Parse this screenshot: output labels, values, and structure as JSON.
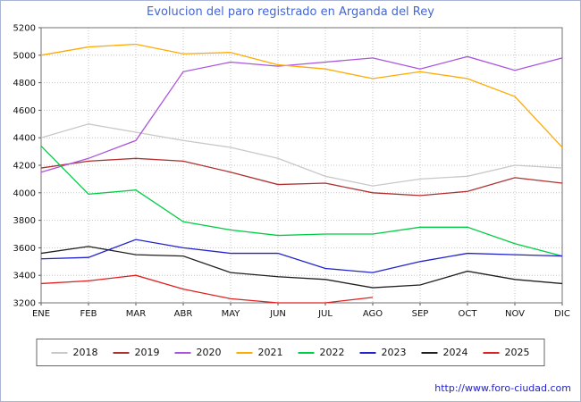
{
  "footer": {
    "url": "http://www.foro-ciudad.com"
  },
  "chart_data": {
    "type": "line",
    "title": "Evolucion del paro registrado en Arganda del Rey",
    "title_color": "#4366d6",
    "categories": [
      "ENE",
      "FEB",
      "MAR",
      "ABR",
      "MAY",
      "JUN",
      "JUL",
      "AGO",
      "SEP",
      "OCT",
      "NOV",
      "DIC"
    ],
    "ylim": [
      3200,
      5200
    ],
    "ytick_step": 200,
    "grid": true,
    "legend_position": "bottom",
    "series": [
      {
        "name": "2018",
        "color": "#c8c8c8",
        "values": [
          4400,
          4500,
          4440,
          4380,
          4330,
          4250,
          4120,
          4050,
          4100,
          4120,
          4200,
          4180
        ]
      },
      {
        "name": "2019",
        "color": "#b03030",
        "values": [
          4180,
          4230,
          4250,
          4230,
          4150,
          4060,
          4070,
          4000,
          3980,
          4010,
          4110,
          4070
        ]
      },
      {
        "name": "2020",
        "color": "#aa55dd",
        "values": [
          4150,
          4250,
          4380,
          4880,
          4950,
          4920,
          4950,
          4980,
          4900,
          4990,
          4890,
          4980
        ]
      },
      {
        "name": "2021",
        "color": "#ffaa00",
        "values": [
          5000,
          5060,
          5080,
          5010,
          5020,
          4930,
          4900,
          4830,
          4880,
          4830,
          4700,
          4330
        ]
      },
      {
        "name": "2022",
        "color": "#00cc44",
        "values": [
          4340,
          3990,
          4020,
          3790,
          3730,
          3690,
          3700,
          3700,
          3750,
          3750,
          3630,
          3540
        ]
      },
      {
        "name": "2023",
        "color": "#2222cc",
        "values": [
          3520,
          3530,
          3660,
          3600,
          3560,
          3560,
          3450,
          3420,
          3500,
          3560,
          3550,
          3540
        ]
      },
      {
        "name": "2024",
        "color": "#202020",
        "values": [
          3560,
          3610,
          3550,
          3540,
          3420,
          3390,
          3370,
          3310,
          3330,
          3430,
          3370,
          3340
        ]
      },
      {
        "name": "2025",
        "color": "#e02020",
        "values": [
          3340,
          3360,
          3400,
          3300,
          3230,
          3200,
          3200,
          3240
        ]
      }
    ]
  }
}
